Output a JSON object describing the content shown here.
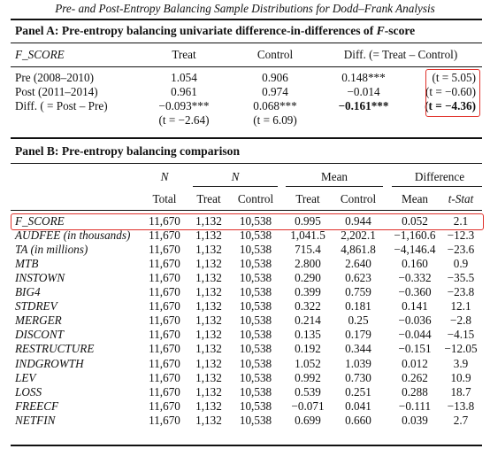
{
  "title": "Pre- and Post-Entropy Balancing Sample Distributions for Dodd–Frank Analysis",
  "highlight_color": "#e0302a",
  "panelA": {
    "title_prefix": "Panel A: Pre-entropy balancing univariate difference-in-differences of ",
    "title_var": "F",
    "title_suffix": "-score",
    "headers": {
      "var": "F_SCORE",
      "treat": "Treat",
      "control": "Control",
      "diff": "Diff. (= Treat – Control)"
    },
    "rows": [
      {
        "label": "Pre (2008–2010)",
        "treat": "1.054",
        "control": "0.906",
        "diff": "0.148***",
        "t": "(t = 5.05)"
      },
      {
        "label": "Post (2011–2014)",
        "treat": "0.961",
        "control": "0.974",
        "diff": "−0.014",
        "t": "(t = −0.60)"
      },
      {
        "label": "Diff. ( = Post – Pre)",
        "treat": "−0.093***",
        "control": "0.068***",
        "diff": "−0.161***",
        "t": "(t = −4.36)"
      }
    ],
    "trow": {
      "treat": "(t = −2.64)",
      "control": "(t = 6.09)"
    }
  },
  "panelB": {
    "title": "Panel B: Pre-entropy balancing comparison",
    "group_headers": {
      "n_total": "N",
      "n": "N",
      "mean": "Mean",
      "difference": "Difference"
    },
    "col_headers": [
      "Total",
      "Treat",
      "Control",
      "Treat",
      "Control",
      "Mean",
      "t-Stat"
    ],
    "rows": [
      [
        "F_SCORE",
        "11,670",
        "1,132",
        "10,538",
        "0.995",
        "0.944",
        "0.052",
        "2.1"
      ],
      [
        "AUDFEE (in thousands)",
        "11,670",
        "1,132",
        "10,538",
        "1,041.5",
        "2,202.1",
        "−1,160.6",
        "−12.3"
      ],
      [
        "TA (in millions)",
        "11,670",
        "1,132",
        "10,538",
        "715.4",
        "4,861.8",
        "−4,146.4",
        "−23.6"
      ],
      [
        "MTB",
        "11,670",
        "1,132",
        "10,538",
        "2.800",
        "2.640",
        "0.160",
        "0.9"
      ],
      [
        "INSTOWN",
        "11,670",
        "1,132",
        "10,538",
        "0.290",
        "0.623",
        "−0.332",
        "−35.5"
      ],
      [
        "BIG4",
        "11,670",
        "1,132",
        "10,538",
        "0.399",
        "0.759",
        "−0.360",
        "−23.8"
      ],
      [
        "STDREV",
        "11,670",
        "1,132",
        "10,538",
        "0.322",
        "0.181",
        "0.141",
        "12.1"
      ],
      [
        "MERGER",
        "11,670",
        "1,132",
        "10,538",
        "0.214",
        "0.25",
        "−0.036",
        "−2.8"
      ],
      [
        "DISCONT",
        "11,670",
        "1,132",
        "10,538",
        "0.135",
        "0.179",
        "−0.044",
        "−4.15"
      ],
      [
        "RESTRUCTURE",
        "11,670",
        "1,132",
        "10,538",
        "0.192",
        "0.344",
        "−0.151",
        "−12.05"
      ],
      [
        "INDGROWTH",
        "11,670",
        "1,132",
        "10,538",
        "1.052",
        "1.039",
        "0.012",
        "3.9"
      ],
      [
        "LEV",
        "11,670",
        "1,132",
        "10,538",
        "0.992",
        "0.730",
        "0.262",
        "10.9"
      ],
      [
        "LOSS",
        "11,670",
        "1,132",
        "10,538",
        "0.539",
        "0.251",
        "0.288",
        "18.7"
      ],
      [
        "FREECF",
        "11,670",
        "1,132",
        "10,538",
        "−0.071",
        "0.041",
        "−0.111",
        "−13.8"
      ],
      [
        "NETFIN",
        "11,670",
        "1,132",
        "10,538",
        "0.699",
        "0.660",
        "0.039",
        "2.7"
      ]
    ]
  }
}
